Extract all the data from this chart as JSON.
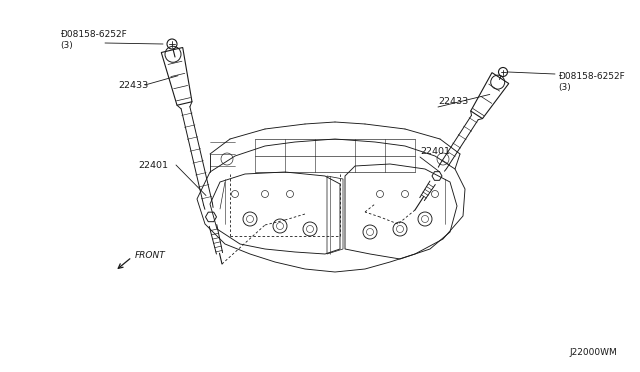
{
  "bg_color": "#ffffff",
  "line_color": "#1a1a1a",
  "part_labels": {
    "bolt_left": "Ð08158-6252F\n(3)",
    "bolt_right": "Ð08158-6252F\n(3)",
    "coil_left": "22433",
    "coil_right": "22433",
    "plug_left": "22401",
    "plug_right": "22401"
  },
  "front_label": "FRONT",
  "diagram_id": "J22000WM",
  "fig_width": 6.4,
  "fig_height": 3.72,
  "dpi": 100
}
